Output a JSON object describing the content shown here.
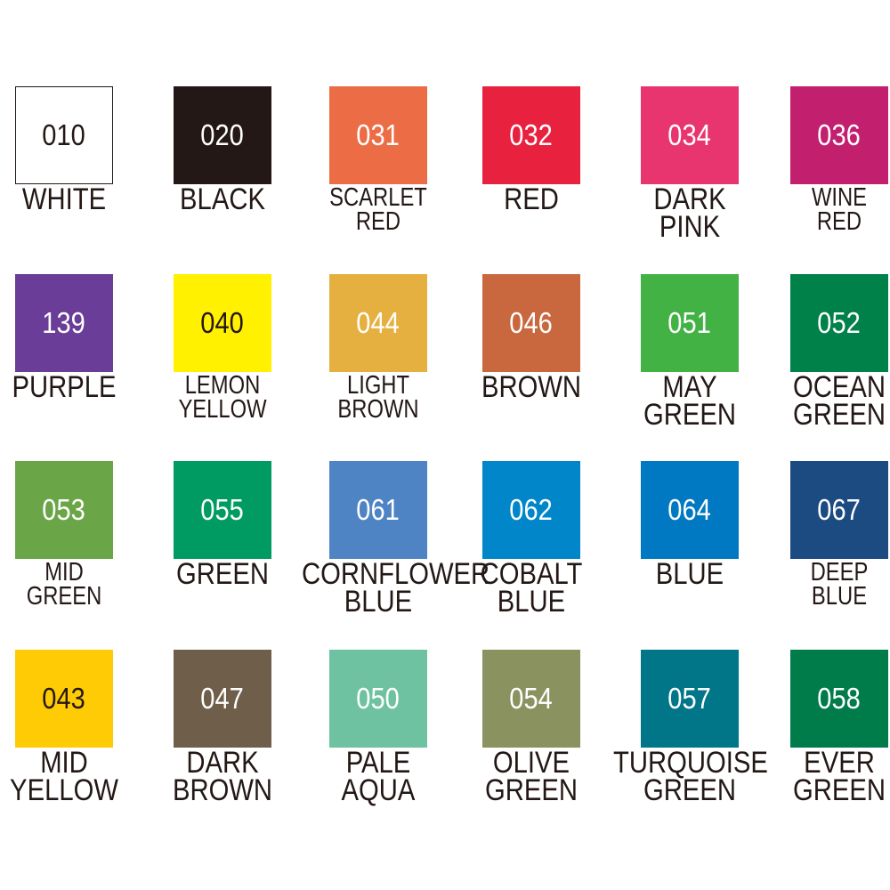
{
  "swatches": [
    {
      "code": "010",
      "name": [
        "WHITE"
      ],
      "color": "#ffffff",
      "text_color": "#231815"
    },
    {
      "code": "020",
      "name": [
        "BLACK"
      ],
      "color": "#231815",
      "text_color": "#ffffff"
    },
    {
      "code": "031",
      "name": [
        "SCARLET",
        "RED"
      ],
      "color": "#ec6d45",
      "text_color": "#ffffff"
    },
    {
      "code": "032",
      "name": [
        "RED"
      ],
      "color": "#e8213f",
      "text_color": "#ffffff"
    },
    {
      "code": "034",
      "name": [
        "DARK",
        "PINK"
      ],
      "color": "#e8356f",
      "text_color": "#ffffff"
    },
    {
      "code": "036",
      "name": [
        "WINE",
        "RED"
      ],
      "color": "#c21f6f",
      "text_color": "#ffffff"
    },
    {
      "code": "139",
      "name": [
        "PURPLE"
      ],
      "color": "#6a3d98",
      "text_color": "#ffffff"
    },
    {
      "code": "040",
      "name": [
        "LEMON",
        "YELLOW"
      ],
      "color": "#fff100",
      "text_color": "#231815"
    },
    {
      "code": "044",
      "name": [
        "LIGHT",
        "BROWN"
      ],
      "color": "#e6b040",
      "text_color": "#ffffff"
    },
    {
      "code": "046",
      "name": [
        "BROWN"
      ],
      "color": "#c9673f",
      "text_color": "#ffffff"
    },
    {
      "code": "051",
      "name": [
        "MAY",
        "GREEN"
      ],
      "color": "#43b245",
      "text_color": "#ffffff"
    },
    {
      "code": "052",
      "name": [
        "OCEAN",
        "GREEN"
      ],
      "color": "#00814a",
      "text_color": "#ffffff"
    },
    {
      "code": "053",
      "name": [
        "MID",
        "GREEN"
      ],
      "color": "#6aa547",
      "text_color": "#ffffff"
    },
    {
      "code": "055",
      "name": [
        "GREEN"
      ],
      "color": "#009b63",
      "text_color": "#ffffff"
    },
    {
      "code": "061",
      "name": [
        "CORNFLOWER",
        "BLUE"
      ],
      "color": "#4f84c4",
      "text_color": "#ffffff"
    },
    {
      "code": "062",
      "name": [
        "COBALT",
        "BLUE"
      ],
      "color": "#0086c9",
      "text_color": "#ffffff"
    },
    {
      "code": "064",
      "name": [
        "BLUE"
      ],
      "color": "#0079c2",
      "text_color": "#ffffff"
    },
    {
      "code": "067",
      "name": [
        "DEEP",
        "BLUE"
      ],
      "color": "#1c4b82",
      "text_color": "#ffffff"
    },
    {
      "code": "043",
      "name": [
        "MID",
        "YELLOW"
      ],
      "color": "#ffcb05",
      "text_color": "#231815"
    },
    {
      "code": "047",
      "name": [
        "DARK",
        "BROWN"
      ],
      "color": "#6f5f4a",
      "text_color": "#ffffff"
    },
    {
      "code": "050",
      "name": [
        "PALE",
        "AQUA"
      ],
      "color": "#6fc2a1",
      "text_color": "#ffffff"
    },
    {
      "code": "054",
      "name": [
        "OLIVE",
        "GREEN"
      ],
      "color": "#8a9260",
      "text_color": "#ffffff"
    },
    {
      "code": "057",
      "name": [
        "TURQUOISE",
        "GREEN"
      ],
      "color": "#007688",
      "text_color": "#ffffff"
    },
    {
      "code": "058",
      "name": [
        "EVER",
        "GREEN"
      ],
      "color": "#007c4a",
      "text_color": "#ffffff"
    }
  ]
}
